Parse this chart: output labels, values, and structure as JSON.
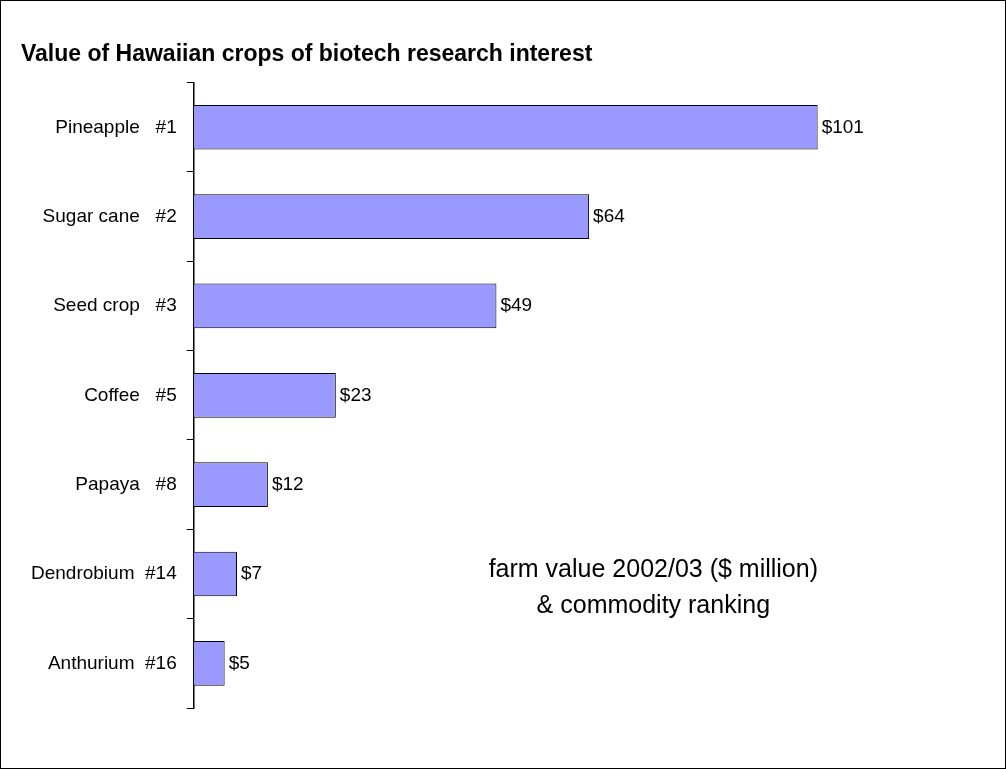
{
  "chart_data": {
    "type": "bar",
    "orientation": "horizontal",
    "title": "Value of Hawaiian crops of biotech research interest",
    "categories": [
      "Pineapple   #1",
      "Sugar cane   #2",
      "Seed crop   #3",
      "Coffee   #5",
      "Papaya   #8",
      "Dendrobium  #14",
      "Anthurium  #16"
    ],
    "values": [
      101,
      64,
      49,
      23,
      12,
      7,
      5
    ],
    "value_labels": [
      "$101",
      "$64",
      "$49",
      "$23",
      "$12",
      "$7",
      "$5"
    ],
    "color": "#9999ff",
    "annotations": [
      "farm value 2002/03 ($ million)",
      "& commodity ranking"
    ],
    "grid": false,
    "legend": false
  }
}
